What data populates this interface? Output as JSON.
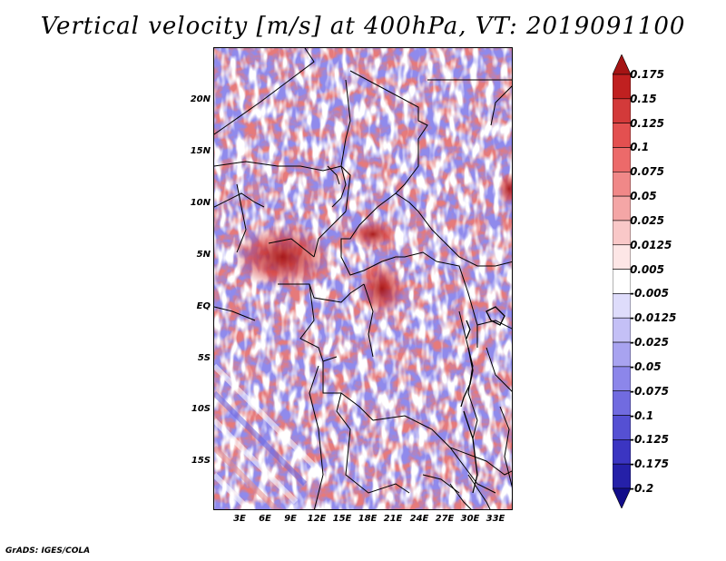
{
  "title": "Vertical velocity [m/s] at 400hPa, VT: 2019091100",
  "credit": "GrADS: IGES/COLA",
  "latitude_labels": [
    "20N",
    "15N",
    "10N",
    "5N",
    "EQ",
    "5S",
    "10S",
    "15S"
  ],
  "longitude_labels": [
    "3E",
    "6E",
    "9E",
    "12E",
    "15E",
    "18E",
    "21E",
    "24E",
    "27E",
    "30E",
    "33E"
  ],
  "colorbar": {
    "labels": [
      "0.175",
      "0.15",
      "0.125",
      "0.1",
      "0.075",
      "0.05",
      "0.025",
      "0.0125",
      "0.005",
      "-0.005",
      "-0.0125",
      "-0.025",
      "-0.05",
      "-0.075",
      "-0.1",
      "-0.125",
      "-0.175",
      "-0.2"
    ],
    "colors": [
      "#a51414",
      "#c02020",
      "#d33a3a",
      "#e35050",
      "#ec6a6a",
      "#f08888",
      "#f4a6a6",
      "#f9c8c8",
      "#fde6e6",
      "#ffffff",
      "#dedcfb",
      "#c4c0f6",
      "#a8a3f0",
      "#8c86ea",
      "#716be0",
      "#5550d3",
      "#3b35c2",
      "#2520a8",
      "#120d8a"
    ]
  },
  "colors": {
    "positive": "#d94c4c",
    "negative": "#7571e6",
    "border": "#000000"
  }
}
